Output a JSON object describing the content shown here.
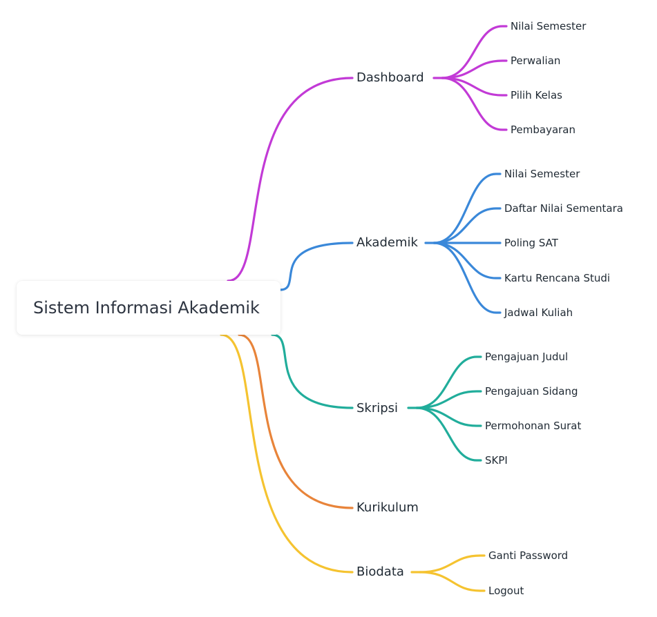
{
  "root": {
    "label": "Sistem Informasi Akademik"
  },
  "branches": [
    {
      "label": "Dashboard",
      "color": "#c23ad6",
      "children": [
        "Nilai Semester",
        "Perwalian",
        "Pilih Kelas",
        "Pembayaran"
      ]
    },
    {
      "label": "Akademik",
      "color": "#3a88d9",
      "children": [
        "Nilai Semester",
        "Daftar Nilai Sementara",
        "Poling SAT",
        "Kartu Rencana Studi",
        "Jadwal Kuliah"
      ]
    },
    {
      "label": "Skripsi",
      "color": "#21ad9b",
      "children": [
        "Pengajuan Judul",
        "Pengajuan Sidang",
        "Permohonan Surat",
        "SKPI"
      ]
    },
    {
      "label": "Kurikulum",
      "color": "#e8843a",
      "children": []
    },
    {
      "label": "Biodata",
      "color": "#f5c330",
      "children": [
        "Ganti Password",
        "Logout"
      ]
    }
  ]
}
